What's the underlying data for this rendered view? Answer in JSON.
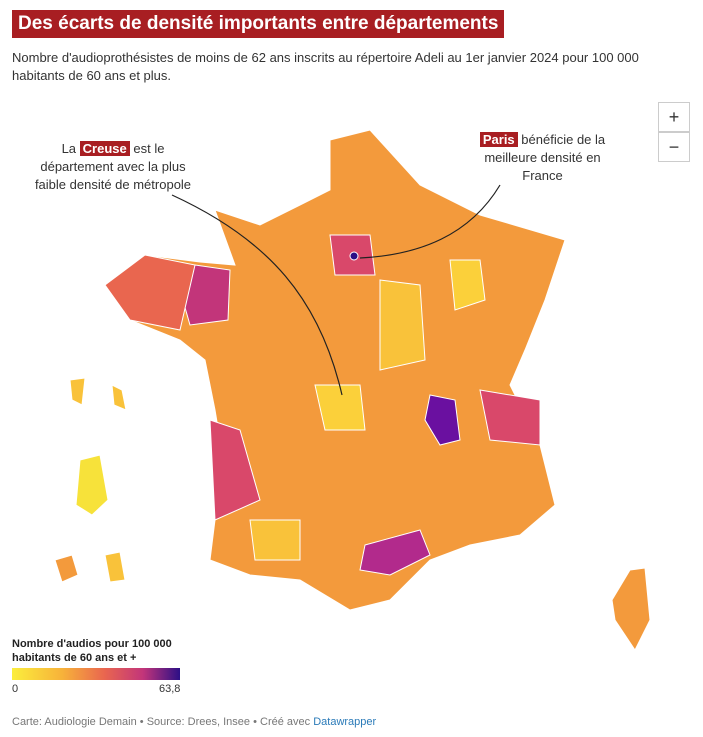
{
  "header": {
    "title": "Des écarts de densité importants entre départements",
    "subtitle": "Nombre d'audioprothésistes de moins de 62 ans inscrits au répertoire Adeli au 1er janvier 2024 pour 100 000 habitants de 60 ans et plus."
  },
  "zoom": {
    "in": "+",
    "out": "−"
  },
  "annotations": [
    {
      "before": "La",
      "highlight": "Creuse",
      "after": "est le département avec la plus faible densité de métropole"
    },
    {
      "highlight": "Paris",
      "after": "bénéficie de la meilleure densité en France"
    }
  ],
  "legend": {
    "title": "Nombre d'audios pour 100 000 habitants de 60 ans et +",
    "ticks": [
      0,
      {
        "value": 63.8,
        "label": "63,8"
      }
    ]
  },
  "footer": {
    "text": "Carte: Audiologie Demain • Source: Drees, Insee • Créé avec",
    "link": "Datawrapper"
  }
}
